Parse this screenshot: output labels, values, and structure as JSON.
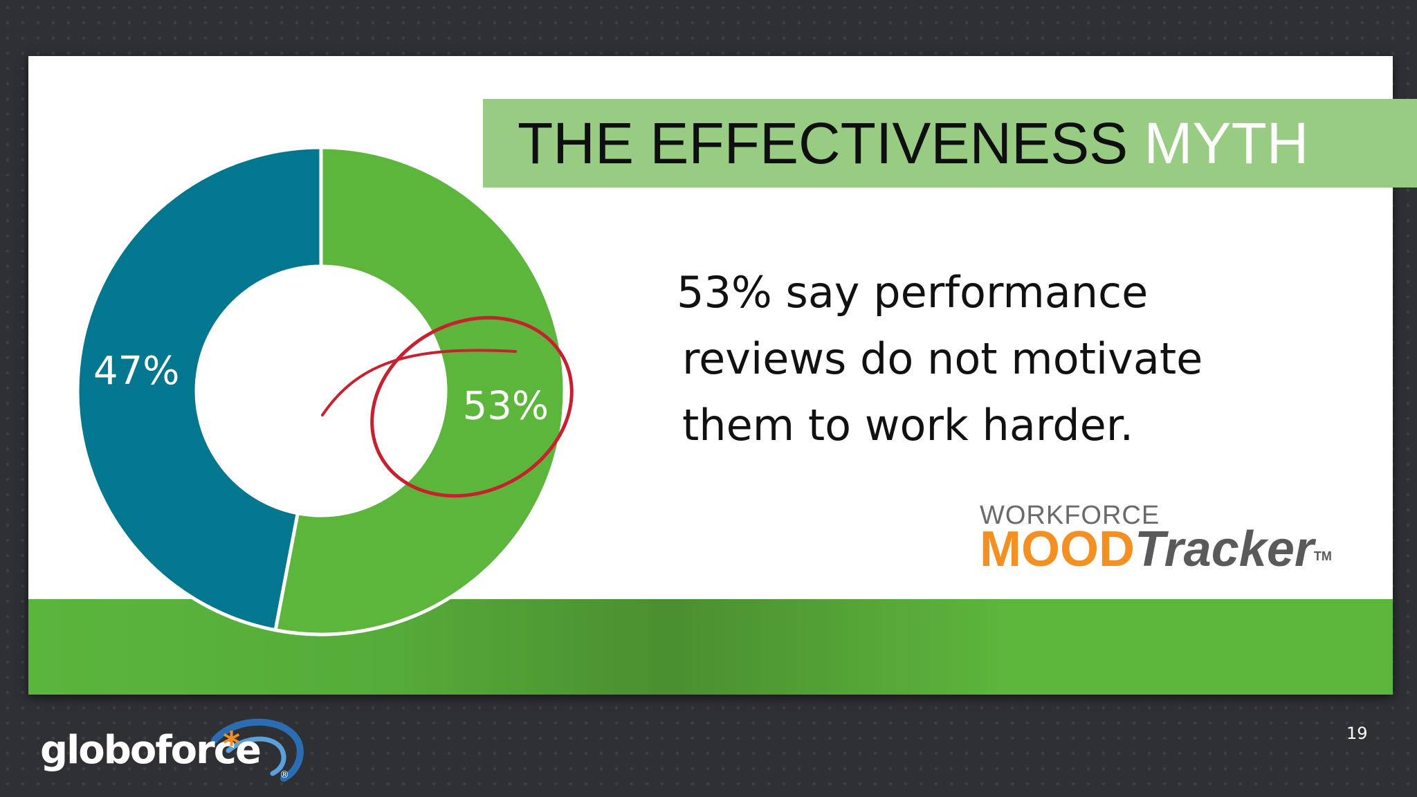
{
  "slide": {
    "title_main": "THE EFFECTIVENESS",
    "title_accent": "MYTH",
    "statement_lines": [
      "53% say performance",
      "reviews do not motivate",
      "them to work harder."
    ],
    "page_number": "19"
  },
  "logos": {
    "workforce_mood_tracker": {
      "line1": "WORKFORCE",
      "line2_a": "MOOD",
      "line2_b": "Tracker",
      "tm": "TM"
    },
    "globoforce": {
      "word": "globoforce",
      "star": "*",
      "reg": "®"
    }
  },
  "colors": {
    "background": "#2f3034",
    "title_bar": "#98cc83",
    "footer_green": "#5db63c",
    "slice_no_motivation": "#5db63c",
    "slice_other": "#02778f",
    "annotation_circle": "#c8202e",
    "brand_orange": "#f39021"
  },
  "chart_data": {
    "type": "pie",
    "variant": "donut",
    "slices": [
      {
        "label": "53%",
        "value": 53,
        "color": "#5db63c",
        "highlighted": true
      },
      {
        "label": "47%",
        "value": 47,
        "color": "#02778f"
      }
    ],
    "start_angle_deg": 0,
    "direction": "clockwise",
    "annotation": "hand-drawn red circle around the 53% slice"
  }
}
